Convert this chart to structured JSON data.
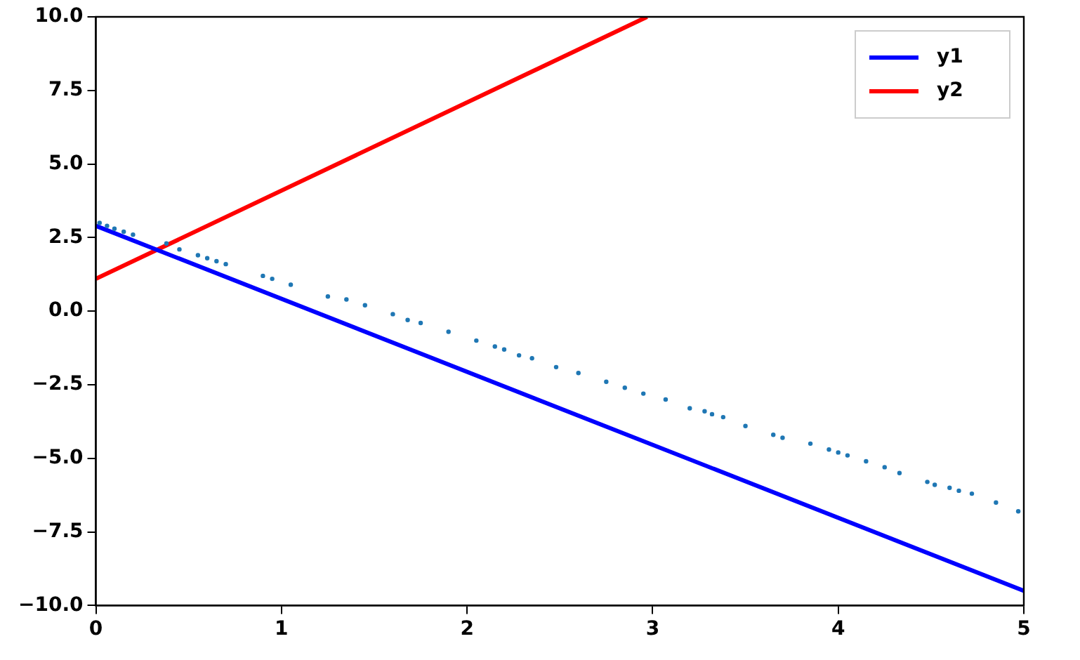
{
  "chart_data": {
    "type": "line",
    "xlim": [
      0,
      5
    ],
    "ylim": [
      -10,
      10
    ],
    "xticks": [
      0,
      1,
      2,
      3,
      4,
      5
    ],
    "yticks": [
      {
        "value": -10,
        "label": "−10.0"
      },
      {
        "value": -7.5,
        "label": "−7.5"
      },
      {
        "value": -5,
        "label": "−5.0"
      },
      {
        "value": -2.5,
        "label": "−2.5"
      },
      {
        "value": 0,
        "label": "0.0"
      },
      {
        "value": 2.5,
        "label": "2.5"
      },
      {
        "value": 5,
        "label": "5.0"
      },
      {
        "value": 7.5,
        "label": "7.5"
      },
      {
        "value": 10,
        "label": "10.0"
      }
    ],
    "grid": false,
    "legend": "top right",
    "marker": "none",
    "line_style": "solid",
    "series": [
      {
        "type": "scatter",
        "color": "#1f77b4",
        "marker": "circle",
        "x": [
          0.02,
          0.06,
          0.1,
          0.15,
          0.2,
          0.38,
          0.45,
          0.55,
          0.6,
          0.65,
          0.7,
          0.9,
          0.95,
          1.05,
          1.25,
          1.35,
          1.45,
          1.6,
          1.68,
          1.75,
          1.9,
          2.05,
          2.15,
          2.2,
          2.28,
          2.35,
          2.48,
          2.6,
          2.75,
          2.85,
          2.95,
          3.07,
          3.2,
          3.28,
          3.32,
          3.38,
          3.5,
          3.65,
          3.7,
          3.85,
          3.95,
          4.0,
          4.05,
          4.15,
          4.25,
          4.33,
          4.48,
          4.52,
          4.6,
          4.65,
          4.72,
          4.85,
          4.97
        ],
        "values": [
          3.0,
          2.9,
          2.8,
          2.7,
          2.6,
          2.3,
          2.1,
          1.9,
          1.8,
          1.7,
          1.6,
          1.2,
          1.1,
          0.9,
          0.5,
          0.4,
          0.2,
          -0.1,
          -0.3,
          -0.4,
          -0.7,
          -1.0,
          -1.2,
          -1.3,
          -1.5,
          -1.6,
          -1.9,
          -2.1,
          -2.4,
          -2.6,
          -2.8,
          -3.0,
          -3.3,
          -3.4,
          -3.5,
          -3.6,
          -3.9,
          -4.2,
          -4.3,
          -4.5,
          -4.7,
          -4.8,
          -4.9,
          -5.1,
          -5.3,
          -5.5,
          -5.8,
          -5.9,
          -6.0,
          -6.1,
          -6.2,
          -6.5,
          -6.8
        ]
      },
      {
        "name": "y1",
        "color": "#0000ff",
        "x": [
          0,
          5
        ],
        "values": [
          2.9,
          -9.5
        ]
      },
      {
        "name": "y2",
        "color": "#ff0000",
        "x": [
          0,
          2.97
        ],
        "values": [
          1.1,
          10
        ]
      }
    ]
  }
}
